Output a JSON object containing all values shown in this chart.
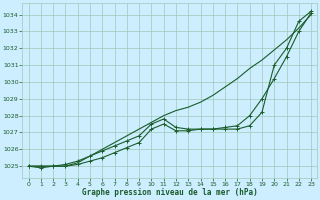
{
  "title": "Graphe pression niveau de la mer (hPa)",
  "bg_color": "#cceeff",
  "grid_color": "#a0c8b8",
  "line_color": "#1a5c2a",
  "xlim": [
    -0.5,
    23.5
  ],
  "ylim": [
    1024.3,
    1034.7
  ],
  "xticks": [
    0,
    1,
    2,
    3,
    4,
    5,
    6,
    7,
    8,
    9,
    10,
    11,
    12,
    13,
    14,
    15,
    16,
    17,
    18,
    19,
    20,
    21,
    22,
    23
  ],
  "yticks": [
    1025,
    1026,
    1027,
    1028,
    1029,
    1030,
    1031,
    1032,
    1033,
    1034
  ],
  "line1_y": [
    1025.0,
    1025.0,
    1025.0,
    1025.0,
    1025.2,
    1025.6,
    1026.0,
    1026.4,
    1026.8,
    1027.2,
    1027.6,
    1028.0,
    1028.3,
    1028.5,
    1028.8,
    1029.2,
    1029.7,
    1030.2,
    1030.8,
    1031.3,
    1031.9,
    1032.5,
    1033.2,
    1034.0
  ],
  "line2_y": [
    1025.0,
    1025.0,
    1025.0,
    1025.1,
    1025.3,
    1025.6,
    1025.9,
    1026.2,
    1026.5,
    1026.8,
    1027.5,
    1027.8,
    1027.3,
    1027.2,
    1027.2,
    1027.2,
    1027.3,
    1027.4,
    1028.0,
    1029.0,
    1030.2,
    1031.5,
    1033.0,
    1034.1
  ],
  "line3_y": [
    1025.0,
    1024.9,
    1025.0,
    1025.0,
    1025.1,
    1025.3,
    1025.5,
    1025.8,
    1026.1,
    1026.4,
    1027.2,
    1027.5,
    1027.1,
    1027.1,
    1027.2,
    1027.2,
    1027.2,
    1027.2,
    1027.4,
    1028.2,
    1031.0,
    1032.0,
    1033.6,
    1034.2
  ]
}
